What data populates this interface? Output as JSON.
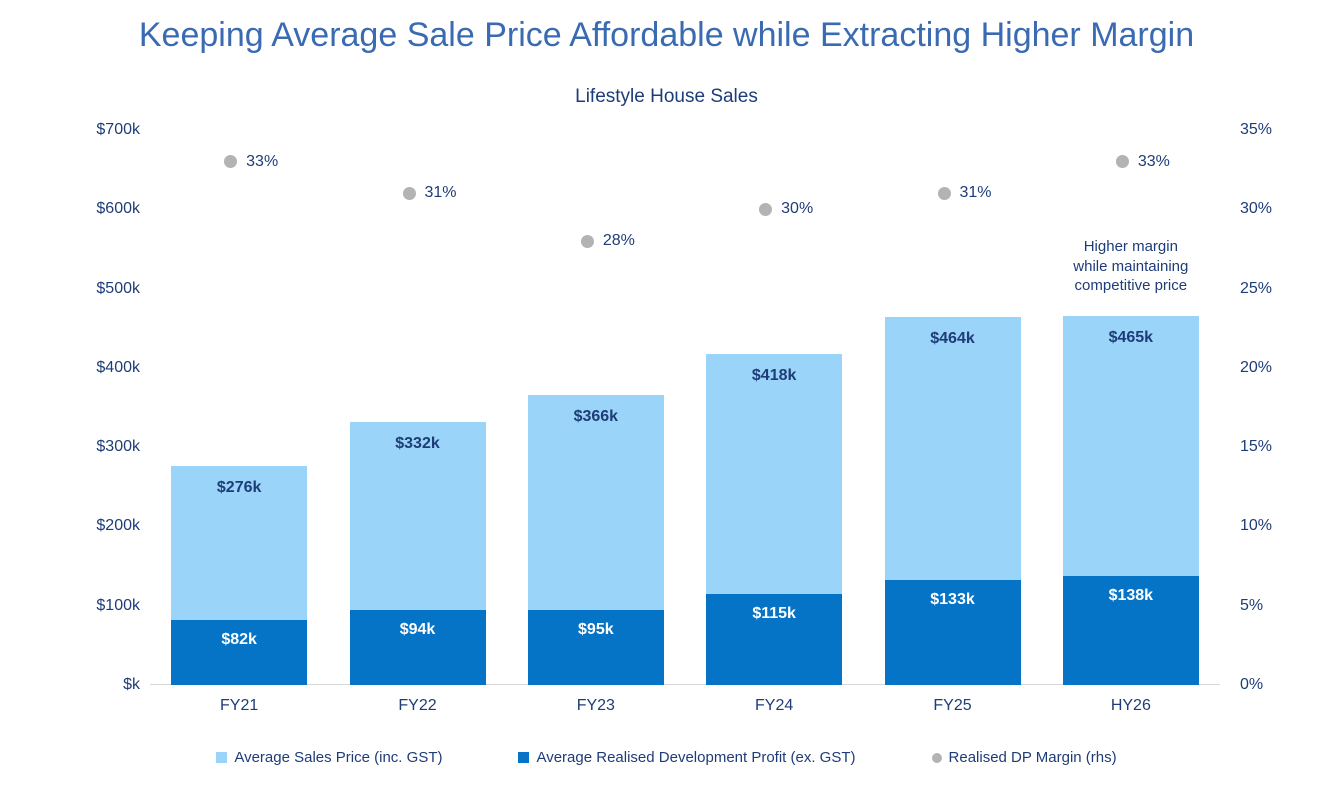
{
  "page_title": "Keeping Average Sale Price Affordable while Extracting Higher Margin",
  "colors": {
    "title": "#3A6BB2",
    "text": "#1E3C78",
    "axis_line": "#D8D8D8",
    "background": "#FFFFFF",
    "light_blue": "#9AD4F8",
    "dark_blue": "#0674C6",
    "gray_dot": "#B3B3B3",
    "white_label": "#FFFFFF"
  },
  "chart_data": {
    "type": "bar",
    "title": "Lifestyle House Sales",
    "categories": [
      "FY21",
      "FY22",
      "FY23",
      "FY24",
      "FY25",
      "HY26"
    ],
    "series": [
      {
        "name": "Average Sales Price (inc. GST)",
        "kind": "bar",
        "axis": "left",
        "color": "#9AD4F8",
        "label_color": "#1E3C78",
        "values": [
          276,
          332,
          366,
          418,
          464,
          465
        ],
        "value_labels": [
          "$276k",
          "$332k",
          "$366k",
          "$418k",
          "$464k",
          "$465k"
        ]
      },
      {
        "name": "Average Realised Development Profit (ex. GST)",
        "kind": "bar",
        "axis": "left",
        "color": "#0674C6",
        "label_color": "#FFFFFF",
        "values": [
          82,
          94,
          95,
          115,
          133,
          138
        ],
        "value_labels": [
          "$82k",
          "$94k",
          "$95k",
          "$115k",
          "$133k",
          "$138k"
        ]
      },
      {
        "name": "Realised DP Margin (rhs)",
        "kind": "point",
        "axis": "right",
        "color": "#B3B3B3",
        "label_color": "#1E3C78",
        "values": [
          33,
          31,
          28,
          30,
          31,
          33
        ],
        "value_labels": [
          "33%",
          "31%",
          "28%",
          "30%",
          "31%",
          "33%"
        ]
      }
    ],
    "left_axis": {
      "min": 0,
      "max": 700,
      "tick_labels": [
        "$700k",
        "$600k",
        "$500k",
        "$400k",
        "$300k",
        "$200k",
        "$100k",
        "$k"
      ]
    },
    "right_axis": {
      "min": 0,
      "max": 35,
      "tick_labels": [
        "35%",
        "30%",
        "25%",
        "20%",
        "15%",
        "10%",
        "5%",
        "0%"
      ]
    },
    "annotation": {
      "lines": [
        "Higher margin",
        "while maintaining",
        "competitive price"
      ],
      "anchor_category": "HY26"
    },
    "grid": false,
    "legend_position": "bottom"
  }
}
